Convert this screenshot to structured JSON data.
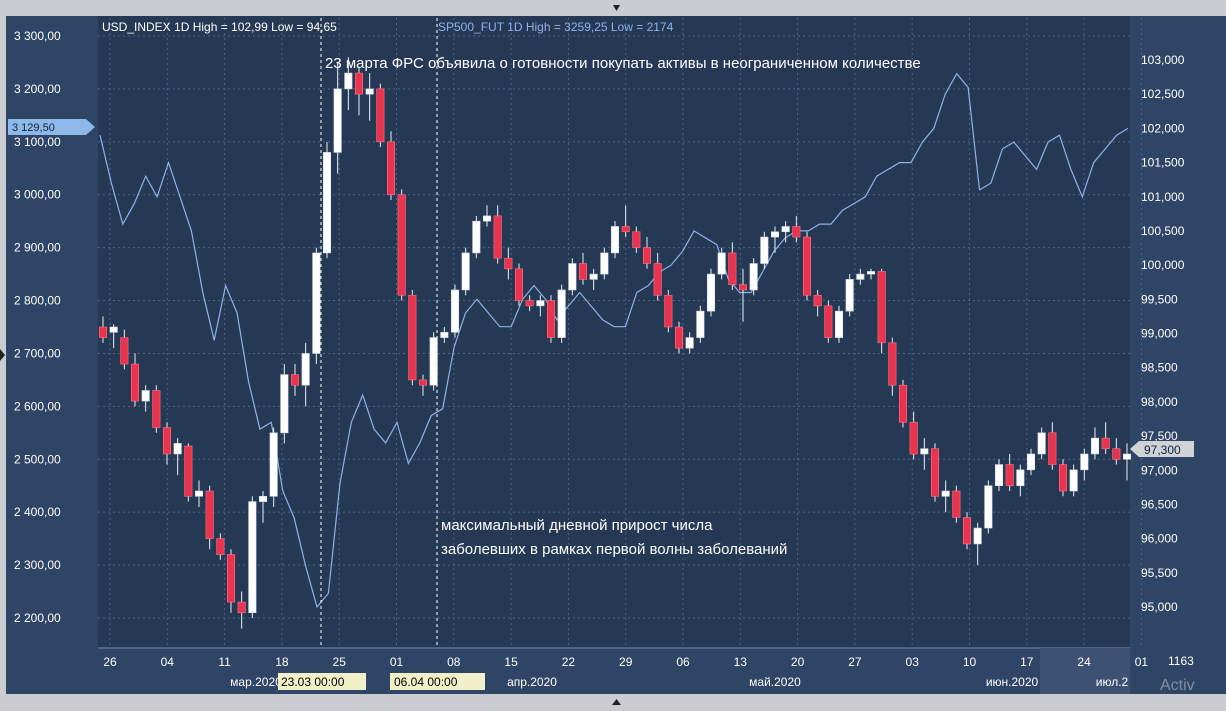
{
  "header": {
    "usd_label": "USD_INDEX 1D High = 102,99 Low = 94,65",
    "sp_label": "SP500_FUT 1D High = 3259,25 Low = 2174"
  },
  "annotations": {
    "fed": "23 марта ФРС объявила о готовности покупать активы в неограниченном количестве",
    "covid_line1": "максимальный дневной прирост числа",
    "covid_line2": "заболевших в рамках первой волны заболеваний"
  },
  "markers": {
    "left_price": "3 129,50",
    "right_price": "97,300",
    "cursor1": "23.03 00:00",
    "cursor2": "06.04 00:00",
    "volume": "1163",
    "watermark": "Activ"
  },
  "colors": {
    "background": "#253955",
    "grid": "#4e6282",
    "up": "#ffffff",
    "down": "#e8344e",
    "usd_line": "#8fb2e6",
    "text": "#ffffff",
    "usd_text": "#8fb2e6"
  },
  "chart_data": {
    "type": "candlestick+line",
    "left_axis": {
      "label": "SP500_FUT",
      "ticks": [
        "3 300,00",
        "3 200,00",
        "3 100,00",
        "3 000,00",
        "2 900,00",
        "2 800,00",
        "2 700,00",
        "2 600,00",
        "2 500,00",
        "2 400,00",
        "2 300,00",
        "2 200,00"
      ],
      "range": [
        2170,
        3300
      ]
    },
    "right_axis": {
      "label": "USD_INDEX",
      "ticks": [
        "103,000",
        "102,500",
        "102,000",
        "101,500",
        "101,000",
        "100,500",
        "100,000",
        "99,500",
        "99,000",
        "98,500",
        "98,000",
        "97,500",
        "97,000",
        "96,500",
        "96,000",
        "95,500",
        "95,000"
      ],
      "range": [
        94.5,
        103.5
      ]
    },
    "x_ticks": [
      "26",
      "04",
      "11",
      "18",
      "25",
      "01",
      "08",
      "15",
      "22",
      "29",
      "06",
      "13",
      "20",
      "27",
      "03",
      "10",
      "17",
      "24",
      "01"
    ],
    "month_labels": [
      "мар.2020",
      "апр.2020",
      "май.2020",
      "июн.2020",
      "июл.2"
    ],
    "sp500_ohlc": [
      [
        2750,
        2770,
        2720,
        2730
      ],
      [
        2740,
        2755,
        2710,
        2750
      ],
      [
        2730,
        2745,
        2670,
        2680
      ],
      [
        2680,
        2700,
        2600,
        2610
      ],
      [
        2610,
        2640,
        2590,
        2630
      ],
      [
        2630,
        2640,
        2550,
        2560
      ],
      [
        2560,
        2570,
        2490,
        2510
      ],
      [
        2510,
        2540,
        2470,
        2530
      ],
      [
        2525,
        2530,
        2420,
        2430
      ],
      [
        2430,
        2460,
        2410,
        2440
      ],
      [
        2440,
        2450,
        2330,
        2350
      ],
      [
        2350,
        2360,
        2310,
        2320
      ],
      [
        2320,
        2330,
        2210,
        2230
      ],
      [
        2230,
        2250,
        2180,
        2210
      ],
      [
        2210,
        2430,
        2200,
        2420
      ],
      [
        2420,
        2440,
        2380,
        2430
      ],
      [
        2430,
        2560,
        2410,
        2550
      ],
      [
        2550,
        2680,
        2530,
        2660
      ],
      [
        2660,
        2680,
        2620,
        2640
      ],
      [
        2640,
        2720,
        2600,
        2700
      ],
      [
        2700,
        2900,
        2680,
        2890
      ],
      [
        2890,
        3100,
        2880,
        3080
      ],
      [
        3080,
        3250,
        3040,
        3200
      ],
      [
        3200,
        3260,
        3160,
        3230
      ],
      [
        3230,
        3240,
        3150,
        3190
      ],
      [
        3190,
        3230,
        3140,
        3200
      ],
      [
        3200,
        3210,
        3090,
        3100
      ],
      [
        3100,
        3120,
        2990,
        3000
      ],
      [
        3000,
        3010,
        2800,
        2810
      ],
      [
        2810,
        2820,
        2640,
        2650
      ],
      [
        2650,
        2660,
        2620,
        2640
      ],
      [
        2640,
        2740,
        2630,
        2730
      ],
      [
        2730,
        2750,
        2720,
        2740
      ],
      [
        2740,
        2830,
        2730,
        2820
      ],
      [
        2820,
        2900,
        2810,
        2890
      ],
      [
        2890,
        2960,
        2880,
        2950
      ],
      [
        2950,
        2980,
        2940,
        2960
      ],
      [
        2960,
        2980,
        2870,
        2880
      ],
      [
        2880,
        2900,
        2840,
        2860
      ],
      [
        2860,
        2870,
        2790,
        2800
      ],
      [
        2800,
        2810,
        2780,
        2790
      ],
      [
        2790,
        2810,
        2770,
        2800
      ],
      [
        2800,
        2810,
        2720,
        2730
      ],
      [
        2730,
        2830,
        2720,
        2820
      ],
      [
        2820,
        2880,
        2810,
        2870
      ],
      [
        2870,
        2890,
        2830,
        2840
      ],
      [
        2840,
        2860,
        2820,
        2850
      ],
      [
        2850,
        2900,
        2840,
        2890
      ],
      [
        2890,
        2950,
        2880,
        2940
      ],
      [
        2940,
        2980,
        2920,
        2930
      ],
      [
        2930,
        2940,
        2890,
        2900
      ],
      [
        2900,
        2920,
        2860,
        2870
      ],
      [
        2870,
        2890,
        2800,
        2810
      ],
      [
        2810,
        2820,
        2740,
        2750
      ],
      [
        2750,
        2760,
        2700,
        2710
      ],
      [
        2710,
        2740,
        2700,
        2730
      ],
      [
        2730,
        2790,
        2720,
        2780
      ],
      [
        2780,
        2860,
        2770,
        2850
      ],
      [
        2850,
        2900,
        2840,
        2890
      ],
      [
        2890,
        2910,
        2820,
        2830
      ],
      [
        2830,
        2860,
        2760,
        2820
      ],
      [
        2820,
        2880,
        2810,
        2870
      ],
      [
        2870,
        2930,
        2860,
        2920
      ],
      [
        2920,
        2940,
        2890,
        2930
      ],
      [
        2930,
        2950,
        2910,
        2940
      ],
      [
        2940,
        2960,
        2910,
        2920
      ],
      [
        2920,
        2930,
        2800,
        2810
      ],
      [
        2810,
        2820,
        2770,
        2790
      ],
      [
        2790,
        2800,
        2720,
        2730
      ],
      [
        2730,
        2790,
        2720,
        2780
      ],
      [
        2780,
        2850,
        2770,
        2840
      ],
      [
        2840,
        2860,
        2830,
        2850
      ],
      [
        2850,
        2860,
        2840,
        2855
      ],
      [
        2855,
        2860,
        2700,
        2720
      ],
      [
        2720,
        2730,
        2620,
        2640
      ],
      [
        2640,
        2650,
        2560,
        2570
      ],
      [
        2570,
        2590,
        2500,
        2510
      ],
      [
        2510,
        2540,
        2480,
        2520
      ],
      [
        2520,
        2530,
        2420,
        2430
      ],
      [
        2430,
        2460,
        2400,
        2440
      ],
      [
        2440,
        2450,
        2380,
        2390
      ],
      [
        2390,
        2400,
        2330,
        2340
      ],
      [
        2340,
        2380,
        2300,
        2370
      ],
      [
        2370,
        2460,
        2360,
        2450
      ],
      [
        2450,
        2500,
        2440,
        2490
      ],
      [
        2490,
        2510,
        2440,
        2450
      ],
      [
        2450,
        2490,
        2430,
        2480
      ],
      [
        2480,
        2520,
        2470,
        2510
      ],
      [
        2510,
        2560,
        2500,
        2550
      ],
      [
        2550,
        2570,
        2480,
        2490
      ],
      [
        2490,
        2500,
        2430,
        2440
      ],
      [
        2440,
        2490,
        2430,
        2480
      ],
      [
        2480,
        2520,
        2460,
        2510
      ],
      [
        2510,
        2560,
        2500,
        2540
      ],
      [
        2540,
        2570,
        2510,
        2520
      ],
      [
        2520,
        2540,
        2490,
        2500
      ],
      [
        2500,
        2530,
        2460,
        2510
      ]
    ],
    "usd_index": [
      101.9,
      101.2,
      100.6,
      100.9,
      101.3,
      101.0,
      101.5,
      101.0,
      100.5,
      99.6,
      98.9,
      99.7,
      99.3,
      98.3,
      97.6,
      97.7,
      96.7,
      96.3,
      95.6,
      95.0,
      95.2,
      96.8,
      97.7,
      98.1,
      97.6,
      97.4,
      97.7,
      97.1,
      97.4,
      97.8,
      97.9,
      98.8,
      99.3,
      99.5,
      99.3,
      99.1,
      99.1,
      99.5,
      99.7,
      99.5,
      99.2,
      99.4,
      99.6,
      99.4,
      99.2,
      99.1,
      99.1,
      99.6,
      99.7,
      99.9,
      100.0,
      100.2,
      100.5,
      100.4,
      100.3,
      99.8,
      99.6,
      99.6,
      99.9,
      100.2,
      100.4,
      100.5,
      100.5,
      100.6,
      100.6,
      100.8,
      100.9,
      101.0,
      101.3,
      101.4,
      101.5,
      101.5,
      101.8,
      102.0,
      102.5,
      102.8,
      102.6,
      101.1,
      101.2,
      101.7,
      101.8,
      101.6,
      101.4,
      101.8,
      101.9,
      101.4,
      101.0,
      101.5,
      101.7,
      101.9,
      102.0
    ]
  }
}
